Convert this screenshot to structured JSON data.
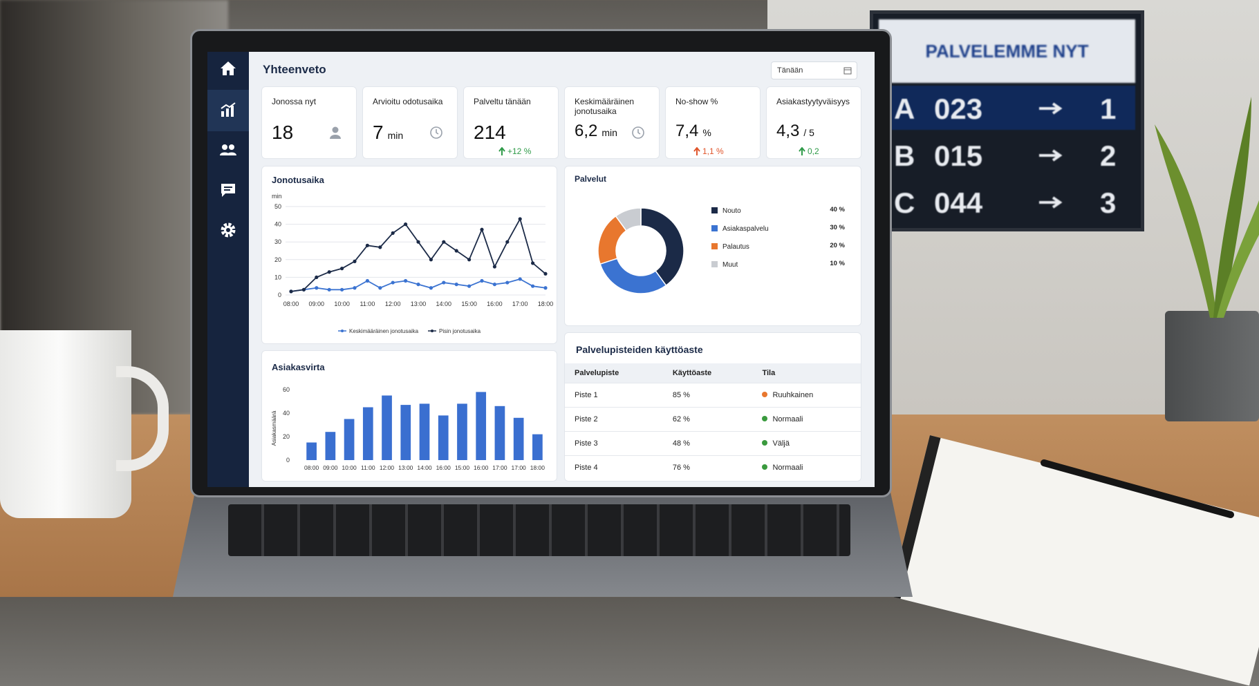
{
  "header": {
    "title": "Yhteenveto",
    "date": "Tänään"
  },
  "kpis": [
    {
      "label": "Jonossa nyt",
      "value": "18"
    },
    {
      "label": "Arvioitu odotusaika",
      "value": "7",
      "unit": "min"
    },
    {
      "label": "Palveltu tänään",
      "value": "214",
      "change": "+12 %",
      "change_color": "#2e9a48"
    },
    {
      "label": "Keskimääräinen jonotusaika",
      "value": "6,2",
      "unit": "min"
    },
    {
      "label": "No-show %",
      "value": "7,4",
      "unit": "%",
      "change": "1,1 %",
      "change_color": "#e0552b"
    },
    {
      "label": "Asiakastyytyväisyys",
      "value": "4,3",
      "unit": "/ 5",
      "change": "0,2",
      "change_color": "#2e9a48"
    }
  ],
  "chart_data": [
    {
      "type": "line",
      "title": "Jonotusaika",
      "y_label": "min",
      "categories": [
        "08:00",
        null,
        "09:00",
        null,
        "10:00",
        null,
        "11:00",
        null,
        "12:00",
        null,
        "13:00",
        null,
        "14:00",
        null,
        "15:00",
        null,
        "16:00",
        null,
        "17:00",
        null,
        "18:00"
      ],
      "series": [
        {
          "name": "Keskimääräinen jonotusaika",
          "color": "#3b73d1",
          "values": [
            2,
            3,
            4,
            3,
            3,
            4,
            8,
            4,
            7,
            8,
            6,
            4,
            7,
            6,
            5,
            8,
            6,
            7,
            9,
            5,
            4
          ]
        },
        {
          "name": "Pisin jonotusaika",
          "color": "#1b2a47",
          "values": [
            2,
            3,
            10,
            13,
            15,
            19,
            28,
            27,
            35,
            40,
            30,
            20,
            30,
            25,
            20,
            37,
            16,
            30,
            43,
            18,
            12
          ]
        }
      ],
      "ylim": [
        0,
        50
      ],
      "yticks": [
        0,
        10,
        20,
        30,
        40,
        50
      ],
      "grid": true
    },
    {
      "type": "pie",
      "title": "Palvelut",
      "donut": true,
      "categories": [
        "Nouto",
        "Asiakaspalvelu",
        "Palautus",
        "Muut"
      ],
      "values": [
        40,
        30,
        20,
        10
      ],
      "value_labels": [
        "40 %",
        "30 %",
        "20 %",
        "10 %"
      ],
      "colors": [
        "#1b2a47",
        "#3b73d1",
        "#e8772e",
        "#c9ccd1"
      ]
    },
    {
      "type": "bar",
      "title": "Asiakasvirta",
      "y_label": "Asiakasmäärä",
      "categories": [
        "08:00",
        "09:00",
        "10:00",
        "11:00",
        "12:00",
        "13:00",
        "14:00",
        "16:00",
        "15:00",
        "16:00",
        "17:00",
        "17:00",
        "18:00"
      ],
      "values": [
        15,
        24,
        35,
        45,
        55,
        47,
        48,
        38,
        48,
        58,
        46,
        36,
        22
      ],
      "color": "#3a6fd0",
      "ylim": [
        0,
        60
      ],
      "yticks": [
        0,
        20,
        40,
        60
      ],
      "grid": false
    }
  ],
  "table": {
    "title": "Palvelupisteiden käyttöaste",
    "columns": [
      "Palvelupiste",
      "Käyttöaste",
      "Tila"
    ],
    "rows": [
      [
        "Piste 1",
        "85 %",
        "Ruuhkainen"
      ],
      [
        "Piste 2",
        "62 %",
        "Normaali"
      ],
      [
        "Piste 3",
        "48 %",
        "Väljä"
      ],
      [
        "Piste 4",
        "76 %",
        "Normaali"
      ]
    ],
    "status_colors": [
      "#e8772e",
      "#3a9a3e",
      "#3a9a3e",
      "#3a9a3e"
    ]
  },
  "display_board": {
    "title": "PALVELEMME NYT",
    "rows": [
      [
        "A",
        "023",
        "1"
      ],
      [
        "B",
        "015",
        "2"
      ],
      [
        "C",
        "044",
        "3"
      ]
    ]
  }
}
